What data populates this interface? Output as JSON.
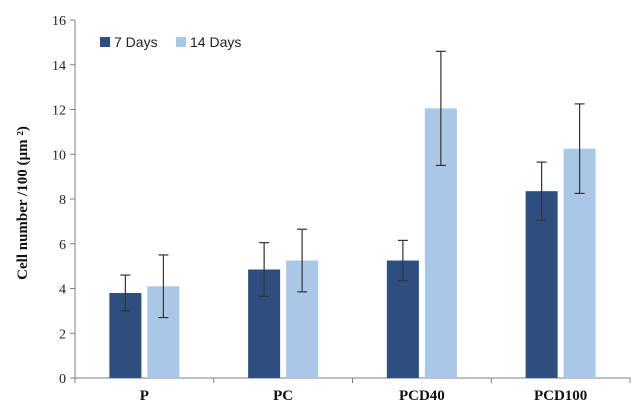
{
  "chart_data": {
    "type": "bar",
    "title": "",
    "xlabel": "",
    "ylabel": "Cell number /100 (µm ²)",
    "ylim": [
      0,
      16
    ],
    "yticks": [
      0,
      2,
      4,
      6,
      8,
      10,
      12,
      14,
      16
    ],
    "grid": false,
    "legend_position": "top-left",
    "categories": [
      "P",
      "PC",
      "PCD40",
      "PCD100"
    ],
    "series": [
      {
        "name": "7 Days",
        "color": "#2d4e7e",
        "values": [
          3.8,
          4.85,
          5.25,
          8.35
        ],
        "errors": [
          0.8,
          1.2,
          0.9,
          1.3
        ]
      },
      {
        "name": "14 Days",
        "color": "#a9c8e8",
        "values": [
          4.1,
          5.25,
          12.05,
          10.25
        ],
        "errors": [
          1.4,
          1.4,
          2.55,
          2.0
        ]
      }
    ]
  }
}
